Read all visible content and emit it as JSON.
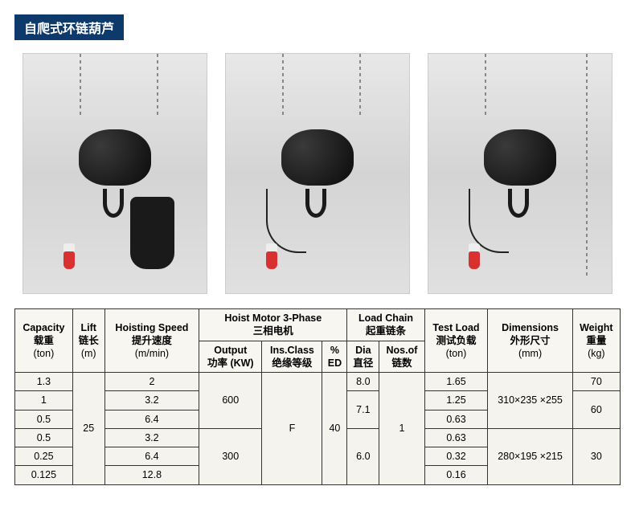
{
  "title": {
    "text": "自爬式环链葫芦",
    "bg_color": "#0d3a6b",
    "text_color": "#ffffff",
    "font_size": 16
  },
  "images": {
    "count": 3,
    "bg_gradient": [
      "#e8e8e8",
      "#d4d4d4",
      "#e0e0e0"
    ]
  },
  "table": {
    "bg_color": "#f5f3ed",
    "border_color": "#333333",
    "font_size": 12.5,
    "headers": {
      "capacity": {
        "en": "Capacity",
        "cn": "载重",
        "unit": "(ton)"
      },
      "lift": {
        "en": "Lift",
        "cn": "链长",
        "unit": "(m)"
      },
      "speed": {
        "en": "Hoisting Speed",
        "cn": "提升速度",
        "unit": "(m/min)"
      },
      "motor": {
        "en": "Hoist Motor 3-Phase",
        "cn": "三相电机"
      },
      "output": {
        "en": "Output",
        "cn": "功率",
        "unit": "(KW)"
      },
      "ins": {
        "en": "Ins.Class",
        "cn": "绝缘等级"
      },
      "ed": {
        "en": "%",
        "cn": "ED"
      },
      "chain": {
        "en": "Load Chain",
        "cn": "起重链条"
      },
      "dia": {
        "en": "Dia",
        "cn": "直径"
      },
      "nos": {
        "en": "Nos.of",
        "cn": "链数"
      },
      "test": {
        "en": "Test Load",
        "cn": "测试负载",
        "unit": "(ton)"
      },
      "dim": {
        "en": "Dimensions",
        "cn": "外形尺寸",
        "unit": "(mm)"
      },
      "weight": {
        "en": "Weight",
        "cn": "重量",
        "unit": "(kg)"
      }
    },
    "rows": [
      {
        "capacity": "1.3",
        "speed": "2",
        "test": "1.65"
      },
      {
        "capacity": "1",
        "speed": "3.2",
        "test": "1.25"
      },
      {
        "capacity": "0.5",
        "speed": "6.4",
        "test": "0.63"
      },
      {
        "capacity": "0.5",
        "speed": "3.2",
        "test": "0.63"
      },
      {
        "capacity": "0.25",
        "speed": "6.4",
        "test": "0.32"
      },
      {
        "capacity": "0.125",
        "speed": "12.8",
        "test": "0.16"
      }
    ],
    "merged": {
      "lift": "25",
      "output_top": "600",
      "output_bottom": "300",
      "ins": "F",
      "ed": "40",
      "dia_1": "8.0",
      "dia_2": "7.1",
      "dia_3": "6.0",
      "nos": "1",
      "dim_top": "310×235 ×255",
      "dim_bottom": "280×195 ×215",
      "weight_1": "70",
      "weight_2": "60",
      "weight_3": "30"
    }
  }
}
